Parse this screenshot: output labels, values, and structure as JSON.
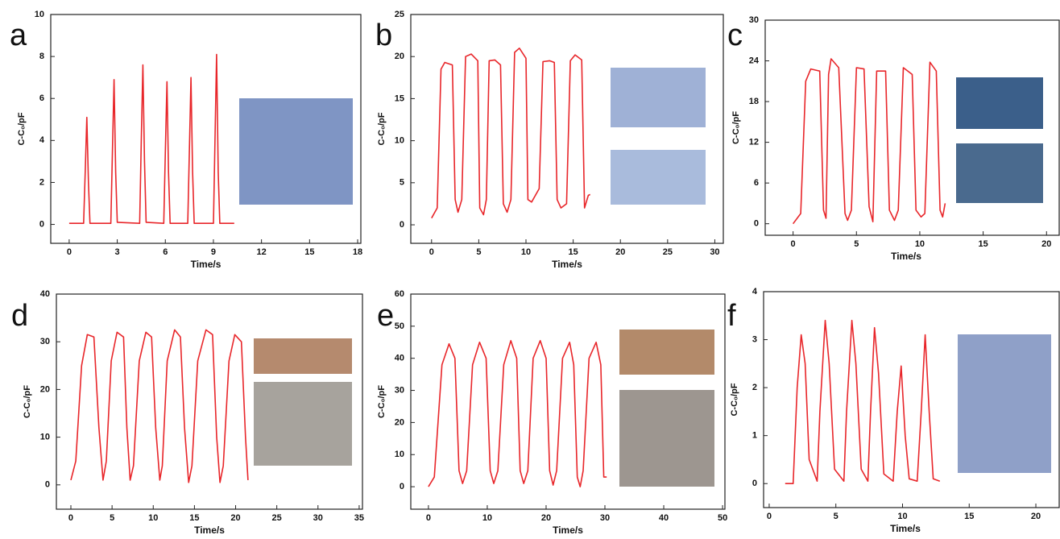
{
  "chart_data": [
    {
      "type": "line",
      "label": "a",
      "x_label": "Time/s",
      "y_label": "C-C₀/pF",
      "xlim": [
        -1.15,
        18.2
      ],
      "ylim": [
        -0.9,
        10
      ],
      "xticks": [
        0,
        3,
        6,
        9,
        12,
        15,
        18
      ],
      "yticks": [
        0,
        2,
        4,
        6,
        8,
        10
      ],
      "series": [
        {
          "color": "#e8262a",
          "x": [
            0,
            0.9,
            1.0,
            1.1,
            1.2,
            1.3,
            2.6,
            2.7,
            2.8,
            2.9,
            3.0,
            4.4,
            4.5,
            4.6,
            4.7,
            4.8,
            5.9,
            6.0,
            6.1,
            6.2,
            6.3,
            7.4,
            7.5,
            7.6,
            7.7,
            7.8,
            9.0,
            9.1,
            9.2,
            9.3,
            9.4,
            10.3
          ],
          "values": [
            0.05,
            0.05,
            2.5,
            5.1,
            2.0,
            0.05,
            0.05,
            3.5,
            6.9,
            2.5,
            0.1,
            0.05,
            4,
            7.6,
            3,
            0.1,
            0.05,
            3.5,
            6.8,
            2.5,
            0.05,
            0.05,
            3.5,
            7.0,
            2.5,
            0.05,
            0.05,
            4,
            8.1,
            2.5,
            0.05,
            0.05
          ]
        }
      ]
    },
    {
      "type": "line",
      "label": "b",
      "x_label": "Time/s",
      "y_label": "C-C₀/pF",
      "xlim": [
        -2.2,
        30.9
      ],
      "ylim": [
        -2.2,
        25
      ],
      "xticks": [
        0,
        5,
        10,
        15,
        20,
        25,
        30
      ],
      "yticks": [
        0,
        5,
        10,
        15,
        20,
        25
      ],
      "series": [
        {
          "color": "#e8262a",
          "x": [
            0,
            0.6,
            1.0,
            1.4,
            2.2,
            2.5,
            2.8,
            3.2,
            3.6,
            4.2,
            4.9,
            5.1,
            5.5,
            5.8,
            6.1,
            6.7,
            7.3,
            7.6,
            8.0,
            8.4,
            8.8,
            9.3,
            10.0,
            10.2,
            10.6,
            11.4,
            11.8,
            12.5,
            13.0,
            13.3,
            13.7,
            14.3,
            14.7,
            15.2,
            15.9,
            16.2,
            16.6,
            16.8
          ],
          "values": [
            0.8,
            2,
            18.5,
            19.3,
            19,
            3,
            1.5,
            3,
            20,
            20.3,
            19.5,
            2,
            1.2,
            3,
            19.5,
            19.6,
            19,
            2.5,
            1.5,
            3,
            20.5,
            21,
            19.8,
            3,
            2.7,
            4.3,
            19.4,
            19.5,
            19.3,
            3,
            2,
            2.5,
            19.5,
            20.2,
            19.6,
            2,
            3.5,
            3.6
          ]
        }
      ]
    },
    {
      "type": "line",
      "label": "c",
      "x_label": "Time/s",
      "y_label": "C-C₀/pF",
      "xlim": [
        -2.2,
        21
      ],
      "ylim": [
        -1.7,
        30
      ],
      "xticks": [
        0,
        5,
        10,
        15,
        20
      ],
      "yticks": [
        0,
        6,
        12,
        18,
        24,
        30
      ],
      "series": [
        {
          "color": "#e8262a",
          "x": [
            0,
            0.6,
            1,
            1.4,
            2.1,
            2.4,
            2.6,
            2.8,
            3,
            3.6,
            4.1,
            4.3,
            4.6,
            5.0,
            5.6,
            6.0,
            6.3,
            6.6,
            7.3,
            7.6,
            8.0,
            8.3,
            8.7,
            9.4,
            9.7,
            10.1,
            10.4,
            10.8,
            11.3,
            11.6,
            11.8,
            12
          ],
          "values": [
            0,
            1.5,
            21,
            22.8,
            22.5,
            2,
            0.8,
            22,
            24.3,
            23,
            1.5,
            0.5,
            2,
            23,
            22.8,
            2.5,
            0.3,
            22.5,
            22.5,
            2,
            0.5,
            2,
            23,
            22,
            2,
            1,
            1.5,
            23.8,
            22.5,
            2,
            1,
            3
          ]
        }
      ]
    },
    {
      "type": "line",
      "label": "d",
      "x_label": "Time/s",
      "y_label": "C-C₀/pF",
      "xlim": [
        -1.76,
        35.4
      ],
      "ylim": [
        -5.1,
        40
      ],
      "xticks": [
        0,
        5,
        10,
        15,
        20,
        25,
        30,
        35
      ],
      "yticks": [
        0,
        10,
        20,
        30,
        40
      ],
      "series": [
        {
          "color": "#e8262a",
          "x": [
            0,
            0.6,
            1.3,
            2,
            2.8,
            3.4,
            3.9,
            4.3,
            4.9,
            5.6,
            6.4,
            6.8,
            7.2,
            7.6,
            8.3,
            9.1,
            9.8,
            10.3,
            10.8,
            11.1,
            11.7,
            12.6,
            13.3,
            13.8,
            14.3,
            14.7,
            15.4,
            16.4,
            17.2,
            17.7,
            18.1,
            18.5,
            19.2,
            19.9,
            20.7,
            21.2,
            21.5
          ],
          "values": [
            1,
            5,
            25,
            31.5,
            31,
            12,
            1,
            5,
            26,
            32,
            31,
            12,
            1,
            4,
            26,
            32,
            31,
            12,
            1,
            4,
            26,
            32.5,
            31,
            12,
            0.5,
            4,
            26,
            32.5,
            31.5,
            10,
            0.5,
            4,
            26,
            31.5,
            30,
            10,
            1
          ]
        }
      ]
    },
    {
      "type": "line",
      "label": "e",
      "x_label": "Time/s",
      "y_label": "C-C₀/pF",
      "xlim": [
        -3,
        50.4
      ],
      "ylim": [
        -7,
        60
      ],
      "xticks": [
        0,
        10,
        20,
        30,
        40,
        50
      ],
      "yticks": [
        0,
        10,
        20,
        30,
        40,
        50,
        60
      ],
      "series": [
        {
          "color": "#e8262a",
          "x": [
            0,
            1,
            2.3,
            3.5,
            4.5,
            5.2,
            5.8,
            6.5,
            7.5,
            8.7,
            9.8,
            10.5,
            11.1,
            11.8,
            12.8,
            14,
            15,
            15.6,
            16.2,
            16.9,
            17.8,
            19,
            20,
            20.6,
            21.2,
            21.8,
            22.8,
            24,
            24.7,
            25.3,
            25.8,
            26.3,
            27.3,
            28.5,
            29.3,
            29.8,
            30.3
          ],
          "values": [
            0,
            3,
            38,
            44.5,
            40,
            5,
            1,
            5,
            38,
            45,
            40,
            5,
            1,
            5,
            38,
            45.5,
            40,
            5,
            1,
            5,
            40,
            45.5,
            40,
            5,
            0.5,
            5,
            40,
            45,
            38,
            3,
            0,
            5,
            40,
            45,
            38,
            3,
            3
          ]
        }
      ]
    },
    {
      "type": "line",
      "label": "f",
      "x_label": "Time/s",
      "y_label": "C-C₀/pF",
      "xlim": [
        -0.42,
        21.75
      ],
      "ylim": [
        -0.5,
        4
      ],
      "xticks": [
        0,
        5,
        10,
        15,
        20
      ],
      "yticks": [
        0,
        1,
        2,
        3,
        4
      ],
      "series": [
        {
          "color": "#e8262a",
          "x": [
            1.2,
            1.8,
            2.1,
            2.4,
            2.7,
            3.0,
            3.6,
            3.8,
            4.2,
            4.5,
            4.9,
            5.6,
            5.8,
            6.2,
            6.5,
            6.9,
            7.4,
            7.6,
            7.9,
            8.2,
            8.6,
            9.3,
            9.6,
            9.9,
            10.2,
            10.5,
            11.1,
            11.4,
            11.7,
            12,
            12.3,
            12.8
          ],
          "values": [
            0,
            0,
            2,
            3.1,
            2.5,
            0.5,
            0.05,
            1.5,
            3.4,
            2.5,
            0.3,
            0.05,
            1.5,
            3.4,
            2.5,
            0.3,
            0.05,
            1.5,
            3.25,
            2.3,
            0.2,
            0.05,
            1.5,
            2.45,
            1,
            0.1,
            0.05,
            1.5,
            3.1,
            1.5,
            0.1,
            0.05
          ]
        }
      ]
    }
  ]
}
